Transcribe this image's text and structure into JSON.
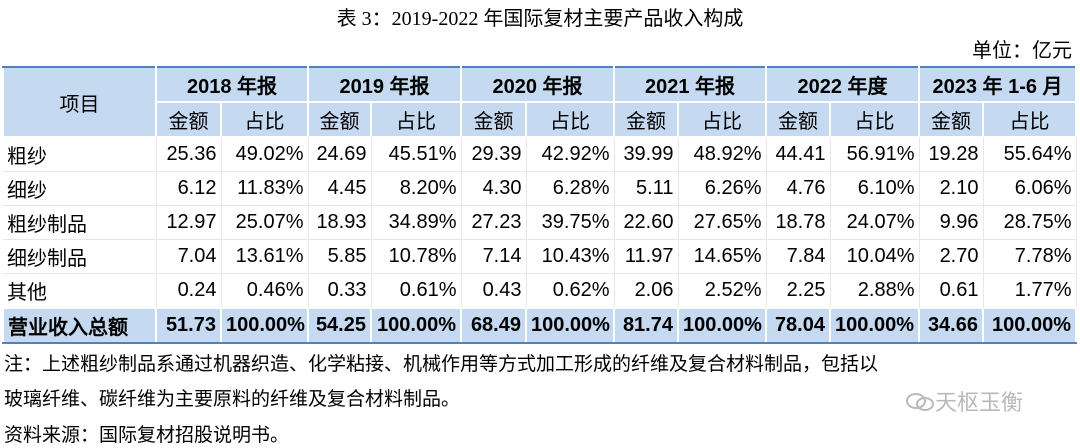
{
  "title": "表 3：2019-2022 年国际复材主要产品收入构成",
  "unit": "单位：亿元",
  "table": {
    "item_header": "项目",
    "years": [
      "2018 年报",
      "2019 年报",
      "2020 年报",
      "2021 年报",
      "2022 年度",
      "2023 年 1-6 月"
    ],
    "subheaders": [
      "金额",
      "占比",
      "金额",
      "占比",
      "金额",
      "占比",
      "金额",
      "占比",
      "金额",
      "占比",
      "金额",
      "占比"
    ],
    "rows": [
      [
        "粗纱",
        "25.36",
        "49.02%",
        "24.69",
        "45.51%",
        "29.39",
        "42.92%",
        "39.99",
        "48.92%",
        "44.41",
        "56.91%",
        "19.28",
        "55.64%"
      ],
      [
        "细纱",
        "6.12",
        "11.83%",
        "4.45",
        "8.20%",
        "4.30",
        "6.28%",
        "5.11",
        "6.26%",
        "4.76",
        "6.10%",
        "2.10",
        "6.06%"
      ],
      [
        "粗纱制品",
        "12.97",
        "25.07%",
        "18.93",
        "34.89%",
        "27.23",
        "39.75%",
        "22.60",
        "27.65%",
        "18.78",
        "24.07%",
        "9.96",
        "28.75%"
      ],
      [
        "细纱制品",
        "7.04",
        "13.61%",
        "5.85",
        "10.78%",
        "7.14",
        "10.43%",
        "11.97",
        "14.65%",
        "7.84",
        "10.04%",
        "2.70",
        "7.78%"
      ],
      [
        "其他",
        "0.24",
        "0.46%",
        "0.33",
        "0.61%",
        "0.43",
        "0.62%",
        "2.06",
        "2.52%",
        "2.25",
        "2.88%",
        "0.61",
        "1.77%"
      ],
      [
        "营业收入总额",
        "51.73",
        "100.00%",
        "54.25",
        "100.00%",
        "68.49",
        "100.00%",
        "81.74",
        "100.00%",
        "78.04",
        "100.00%",
        "34.66",
        "100.00%"
      ]
    ]
  },
  "notes": [
    "注：上述粗纱制品系通过机器织造、化学粘接、机械作用等方式加工形成的纤维及复合材料制品，包括以",
    "玻璃纤维、碳纤维为主要原料的纤维及复合材料制品。",
    "资料来源：国际复材招股说明书。"
  ],
  "watermark": "天枢玉衡"
}
